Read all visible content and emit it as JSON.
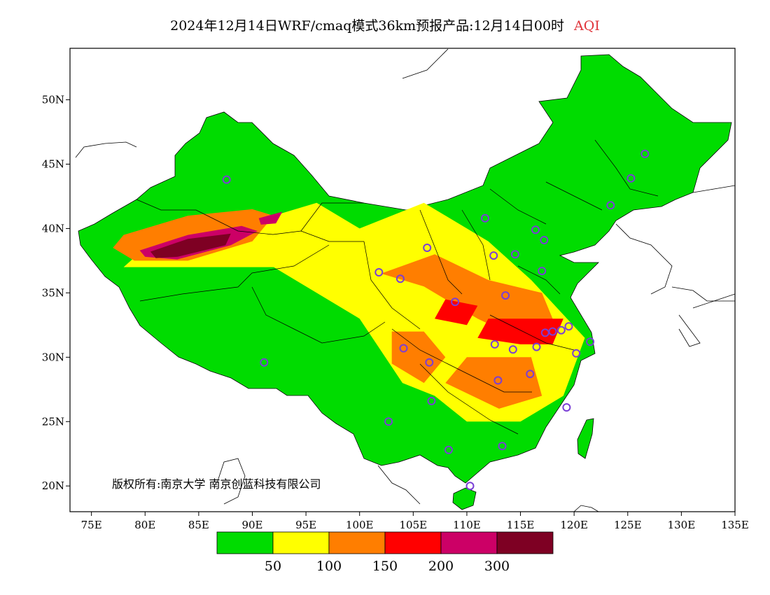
{
  "title": {
    "main": "2024年12月14日WRF/cmaq模式36km预报产品:12月14日00时",
    "variable": "AQI"
  },
  "map": {
    "lon_range": [
      73,
      135
    ],
    "lat_range": [
      18,
      54
    ],
    "x_ticks": [
      "75E",
      "80E",
      "85E",
      "90E",
      "95E",
      "100E",
      "105E",
      "110E",
      "115E",
      "120E",
      "125E",
      "130E",
      "135E"
    ],
    "y_ticks": [
      "20N",
      "25N",
      "30N",
      "35N",
      "40N",
      "45N",
      "50N"
    ],
    "copyright": "版权所有:南京大学 南京创蓝科技有限公司"
  },
  "legend": {
    "colors": [
      "#00dc00",
      "#ffff00",
      "#ff7e00",
      "#ff0000",
      "#cc0066",
      "#7e0023"
    ],
    "labels": [
      "50",
      "100",
      "150",
      "200",
      "300"
    ]
  },
  "stations": [
    [
      87.6,
      43.8
    ],
    [
      91.1,
      29.6
    ],
    [
      101.8,
      36.6
    ],
    [
      103.8,
      36.1
    ],
    [
      106.3,
      38.5
    ],
    [
      111.7,
      40.8
    ],
    [
      112.5,
      37.9
    ],
    [
      114.5,
      38.0
    ],
    [
      116.4,
      39.9
    ],
    [
      117.2,
      39.1
    ],
    [
      117.0,
      36.7
    ],
    [
      113.6,
      34.8
    ],
    [
      108.9,
      34.3
    ],
    [
      104.1,
      30.7
    ],
    [
      106.5,
      29.6
    ],
    [
      106.7,
      26.6
    ],
    [
      102.7,
      25.0
    ],
    [
      108.3,
      22.8
    ],
    [
      113.3,
      23.1
    ],
    [
      110.3,
      20.0
    ],
    [
      114.3,
      30.6
    ],
    [
      112.9,
      28.2
    ],
    [
      115.9,
      28.7
    ],
    [
      117.3,
      31.9
    ],
    [
      118.8,
      32.1
    ],
    [
      121.5,
      31.2
    ],
    [
      120.2,
      30.3
    ],
    [
      119.3,
      26.1
    ],
    [
      123.4,
      41.8
    ],
    [
      125.3,
      43.9
    ],
    [
      126.6,
      45.8
    ],
    [
      112.6,
      31.0
    ],
    [
      116.5,
      30.8
    ],
    [
      118.0,
      32.0
    ],
    [
      119.5,
      32.4
    ]
  ],
  "aqi_regions": [
    {
      "level": 1,
      "points": [
        [
          80,
          38.5
        ],
        [
          88,
          39
        ],
        [
          92,
          41
        ],
        [
          96,
          42
        ],
        [
          100,
          40
        ],
        [
          106,
          42
        ],
        [
          112,
          39
        ],
        [
          116,
          36
        ],
        [
          121,
          31.5
        ],
        [
          119,
          27
        ],
        [
          115,
          25
        ],
        [
          110,
          25
        ],
        [
          107,
          27
        ],
        [
          104,
          28
        ],
        [
          100,
          33
        ],
        [
          96,
          35
        ],
        [
          92,
          37
        ],
        [
          84,
          37
        ],
        [
          78,
          37
        ]
      ]
    },
    {
      "level": 2,
      "points": [
        [
          78,
          39.5
        ],
        [
          84,
          41
        ],
        [
          90,
          41.5
        ],
        [
          92,
          41
        ],
        [
          90,
          39
        ],
        [
          84,
          37.5
        ],
        [
          79,
          37.5
        ],
        [
          77,
          38.5
        ]
      ]
    },
    {
      "level": 2,
      "points": [
        [
          102,
          36.5
        ],
        [
          106,
          35.5
        ],
        [
          111,
          33
        ],
        [
          116,
          31
        ],
        [
          118,
          33
        ],
        [
          117,
          35
        ],
        [
          112,
          36
        ],
        [
          107,
          38
        ]
      ]
    },
    {
      "level": 2,
      "points": [
        [
          103,
          29.5
        ],
        [
          106,
          28
        ],
        [
          108,
          30
        ],
        [
          106,
          32
        ],
        [
          103,
          32
        ]
      ]
    },
    {
      "level": 2,
      "points": [
        [
          108,
          28
        ],
        [
          113,
          26
        ],
        [
          117,
          27
        ],
        [
          116,
          30
        ],
        [
          110,
          30
        ]
      ]
    },
    {
      "level": 3,
      "points": [
        [
          111,
          31.5
        ],
        [
          115,
          31
        ],
        [
          118,
          31
        ],
        [
          119,
          33
        ],
        [
          116,
          33
        ],
        [
          112,
          33
        ]
      ]
    },
    {
      "level": 3,
      "points": [
        [
          107,
          33
        ],
        [
          110,
          32.5
        ],
        [
          111,
          34
        ],
        [
          108,
          34.5
        ]
      ]
    },
    {
      "level": 4,
      "points": [
        [
          79.5,
          38.3
        ],
        [
          84,
          39.5
        ],
        [
          89,
          40.2
        ],
        [
          90.5,
          39.8
        ],
        [
          88,
          38.7
        ],
        [
          83,
          37.6
        ],
        [
          80,
          37.8
        ]
      ]
    },
    {
      "level": 5,
      "points": [
        [
          80.5,
          38.2
        ],
        [
          84,
          39.2
        ],
        [
          88,
          39.6
        ],
        [
          87.5,
          38.7
        ],
        [
          83,
          37.8
        ],
        [
          81,
          37.7
        ]
      ]
    },
    {
      "level": 4,
      "points": [
        [
          90.6,
          40.8
        ],
        [
          92.8,
          41.3
        ],
        [
          92.2,
          40.4
        ],
        [
          90.8,
          40.3
        ]
      ]
    }
  ]
}
